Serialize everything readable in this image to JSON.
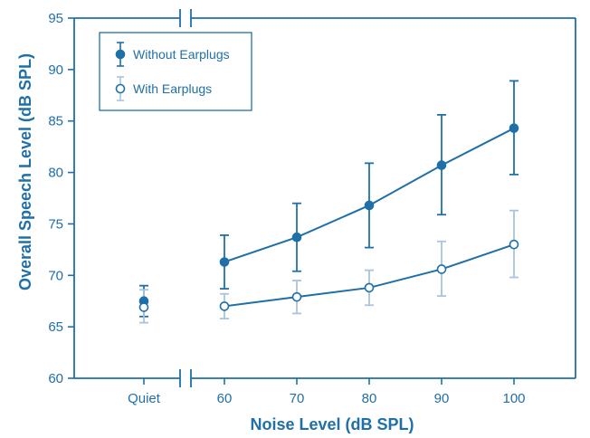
{
  "colors": {
    "axis": "#1f6fa8",
    "series_without": "#1f6fa8",
    "series_with_line": "#1f6fa8",
    "series_with_error": "#a9c4de"
  },
  "chart_data": {
    "type": "line",
    "title": "",
    "xlabel": "Noise Level (dB SPL)",
    "ylabel": "Overall Speech Level (dB SPL)",
    "ylim": [
      60,
      95
    ],
    "y_ticks": [
      60,
      65,
      70,
      75,
      80,
      85,
      90,
      95
    ],
    "x_ticks": [
      "Quiet",
      "60",
      "70",
      "80",
      "90",
      "100"
    ],
    "x_axis_break": "between Quiet and 60",
    "legend_position": "top-left",
    "grid": false,
    "series": [
      {
        "name": "Without Earplugs",
        "marker": "filled-circle",
        "points": [
          {
            "x": "Quiet",
            "y": 67.5,
            "err_low": 66.0,
            "err_high": 69.0,
            "connected": false
          },
          {
            "x": "60",
            "y": 71.3,
            "err_low": 68.7,
            "err_high": 73.9,
            "connected": true
          },
          {
            "x": "70",
            "y": 73.7,
            "err_low": 70.4,
            "err_high": 77.0,
            "connected": true
          },
          {
            "x": "80",
            "y": 76.8,
            "err_low": 72.7,
            "err_high": 80.9,
            "connected": true
          },
          {
            "x": "90",
            "y": 80.7,
            "err_low": 75.9,
            "err_high": 85.6,
            "connected": true
          },
          {
            "x": "100",
            "y": 84.3,
            "err_low": 79.8,
            "err_high": 88.9,
            "connected": true
          }
        ]
      },
      {
        "name": "With Earplugs",
        "marker": "open-circle",
        "points": [
          {
            "x": "Quiet",
            "y": 66.9,
            "err_low": 65.4,
            "err_high": 68.6,
            "connected": false
          },
          {
            "x": "60",
            "y": 67.0,
            "err_low": 65.8,
            "err_high": 68.2,
            "connected": true
          },
          {
            "x": "70",
            "y": 67.9,
            "err_low": 66.3,
            "err_high": 69.5,
            "connected": true
          },
          {
            "x": "80",
            "y": 68.8,
            "err_low": 67.1,
            "err_high": 70.5,
            "connected": true
          },
          {
            "x": "90",
            "y": 70.6,
            "err_low": 68.0,
            "err_high": 73.3,
            "connected": true
          },
          {
            "x": "100",
            "y": 73.0,
            "err_low": 69.8,
            "err_high": 76.3,
            "connected": true
          }
        ]
      }
    ]
  }
}
